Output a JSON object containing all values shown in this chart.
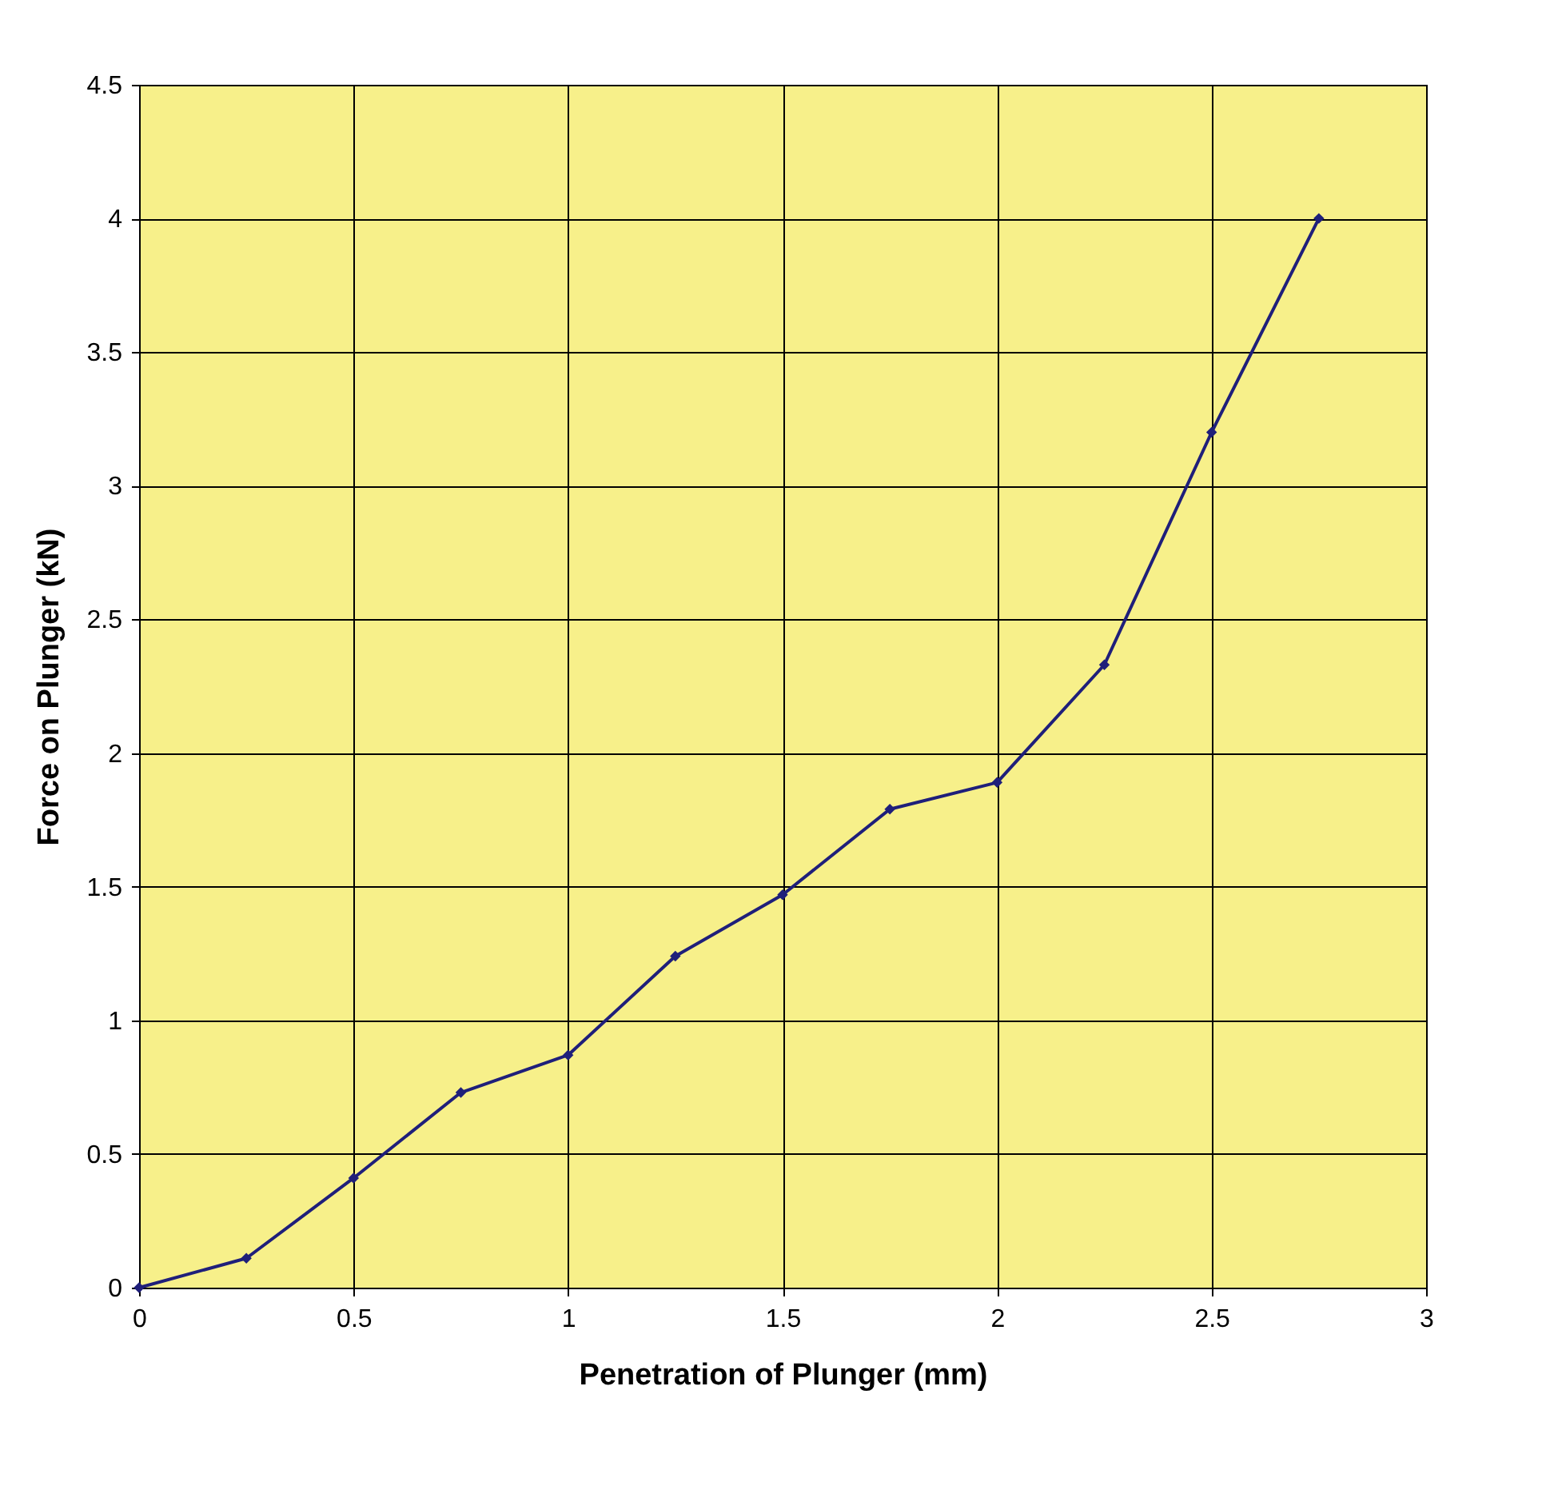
{
  "chart_data": {
    "type": "line",
    "xlabel": "Penetration of Plunger (mm)",
    "ylabel": "Force on Plunger (kN)",
    "x": [
      0,
      0.25,
      0.5,
      0.75,
      1,
      1.25,
      1.5,
      1.75,
      2,
      2.25,
      2.5,
      2.75
    ],
    "series": [
      {
        "color": "#1f1f7a",
        "values": [
          0,
          0.11,
          0.41,
          0.73,
          0.87,
          1.24,
          1.47,
          1.79,
          1.89,
          2.33,
          3.2,
          4.0
        ]
      }
    ],
    "xlim": [
      0,
      3
    ],
    "xticks": [
      0,
      0.5,
      1,
      1.5,
      2,
      2.5,
      3
    ],
    "ylim": [
      0,
      4.5
    ],
    "yticks": [
      0,
      0.5,
      1,
      1.5,
      2,
      2.5,
      3,
      3.5,
      4,
      4.5
    ],
    "grid": true,
    "marker": "diamond",
    "line_style": "solid"
  }
}
